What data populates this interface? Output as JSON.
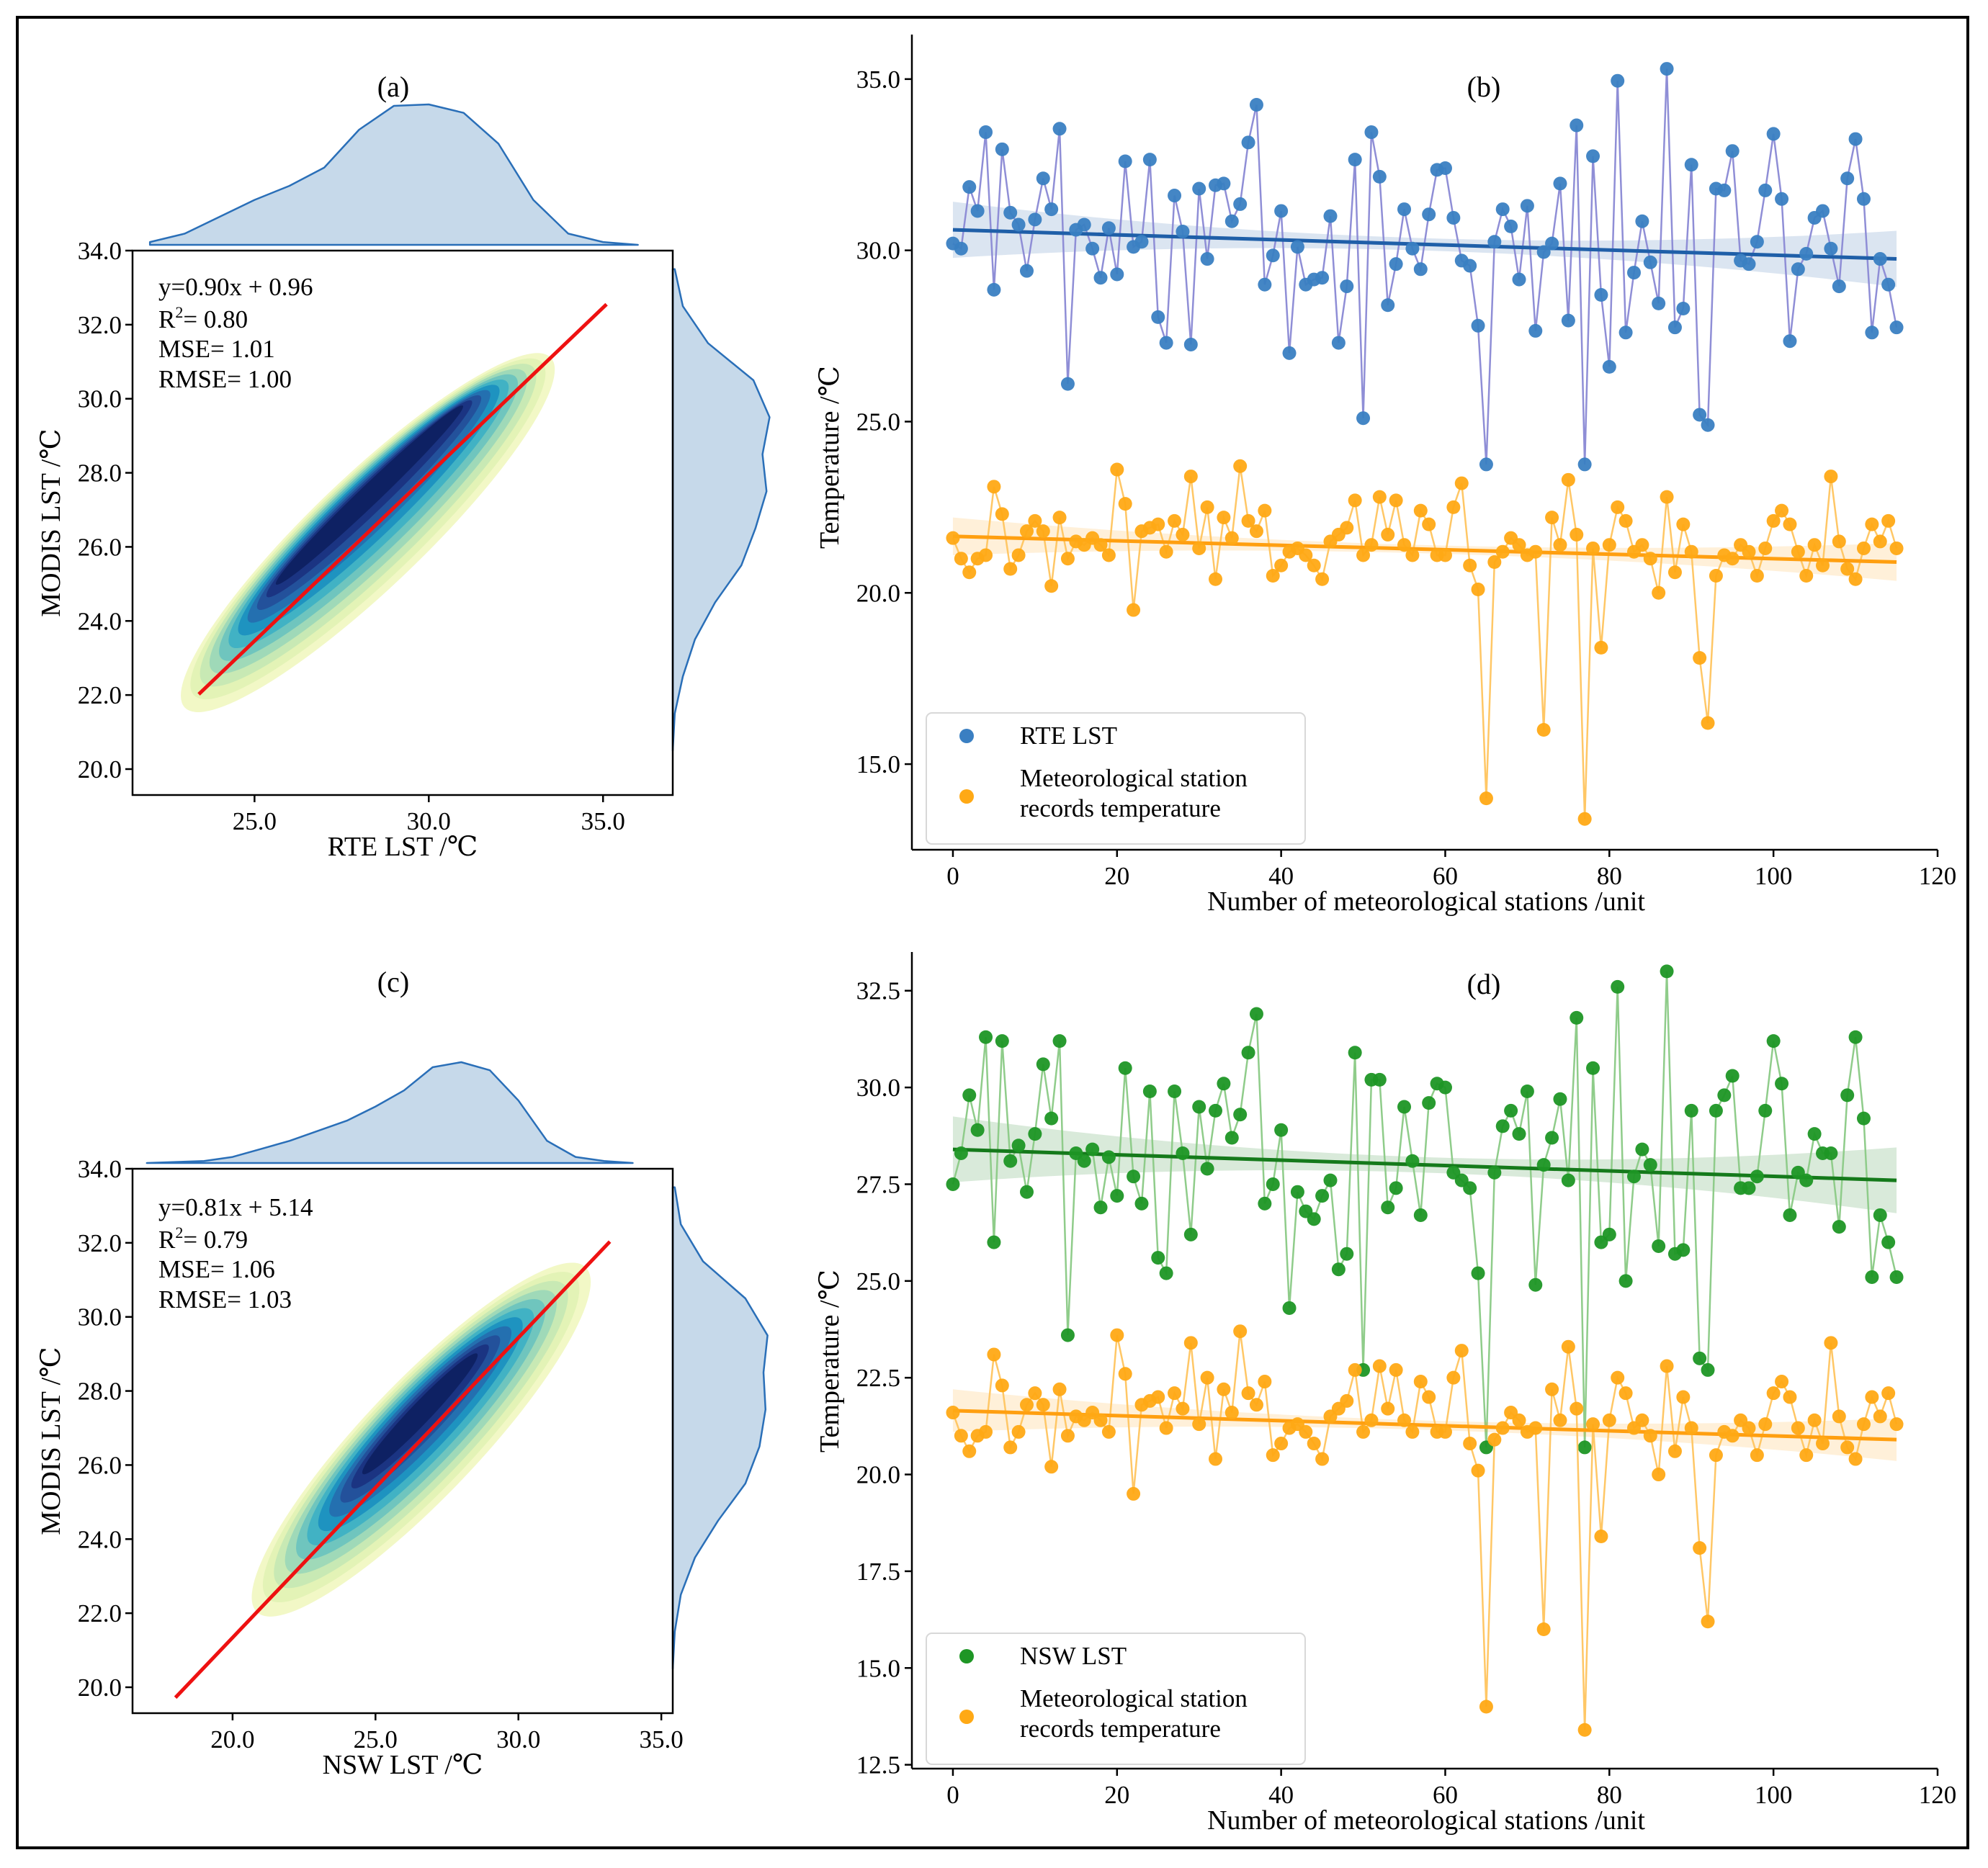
{
  "figure_title": "",
  "panels": {
    "a": {
      "label": "(a)",
      "xlabel": "RTE LST /℃",
      "ylabel": "MODIS LST /℃",
      "xticks": [
        "25.0",
        "30.0",
        "35.0"
      ],
      "yticks": [
        "20.0",
        "22.0",
        "24.0",
        "26.0",
        "28.0",
        "30.0",
        "32.0",
        "34.0"
      ],
      "stats": {
        "eq": "y=0.90x + 0.96",
        "r2_prefix": "R",
        "r2_sup": "2",
        "r2_suffix": "= 0.80",
        "mse": "MSE= 1.01",
        "rmse": "RMSE= 1.00"
      }
    },
    "b": {
      "label": "(b)",
      "xlabel": "Number of meteorological stations /unit",
      "ylabel": "Temperature /℃",
      "xticks": [
        "0",
        "20",
        "40",
        "60",
        "80",
        "100",
        "120"
      ],
      "yticks": [
        "15.0",
        "20.0",
        "25.0",
        "30.0",
        "35.0"
      ],
      "legend": {
        "series1": "RTE LST",
        "series2_line1": "Meteorological station",
        "series2_line2": "records temperature"
      }
    },
    "c": {
      "label": "(c)",
      "xlabel": "NSW LST  /℃",
      "ylabel": "MODIS LST /℃",
      "xticks": [
        "20.0",
        "25.0",
        "30.0",
        "35.0"
      ],
      "yticks": [
        "20.0",
        "22.0",
        "24.0",
        "26.0",
        "28.0",
        "30.0",
        "32.0",
        "34.0"
      ],
      "stats": {
        "eq": "y=0.81x + 5.14",
        "r2_prefix": "R",
        "r2_sup": "2",
        "r2_suffix": "= 0.79",
        "mse": "MSE= 1.06",
        "rmse": "RMSE= 1.03"
      }
    },
    "d": {
      "label": "(d)",
      "xlabel": "Number of meteorological stations /unit",
      "ylabel": "Temperature /℃",
      "xticks": [
        "0",
        "20",
        "40",
        "60",
        "80",
        "100",
        "120"
      ],
      "yticks": [
        "12.5",
        "15.0",
        "17.5",
        "20.0",
        "22.5",
        "25.0",
        "27.5",
        "30.0",
        "32.5"
      ],
      "legend": {
        "series1": "NSW LST",
        "series2_line1": "Meteorological station",
        "series2_line2": "records temperature"
      }
    }
  },
  "colors": {
    "rte": "#3a7fc2",
    "rte_line": "#8f8ed6",
    "rte_fit": "#1f5fa8",
    "met": "#ffa915",
    "met_line": "#ffc766",
    "met_fit": "#ff9f10",
    "nsw": "#1e9625",
    "nsw_line": "#8fcc8a",
    "nsw_fit": "#157a1b",
    "fit_red": "#ee1111",
    "kde_fill": "#c6d9ea",
    "kde_edge": "#2a6fb8"
  },
  "chart_data": [
    {
      "type": "density_scatter",
      "panel": "a",
      "title": "(a)",
      "xlabel": "RTE LST /℃",
      "ylabel": "MODIS LST /℃",
      "xlim": [
        21.5,
        37.0
      ],
      "ylim": [
        19.3,
        34.0
      ],
      "fit": {
        "slope": 0.9,
        "intercept": 0.96,
        "x_range": [
          23.4,
          35.1
        ]
      },
      "density_axis": [
        25.0,
        31.5
      ],
      "density_spread": [
        0.75,
        0.22
      ],
      "density_extent": [
        23.0,
        33.5
      ],
      "marginal_x": [
        [
          22.0,
          0.02
        ],
        [
          23.0,
          0.08
        ],
        [
          24.0,
          0.2
        ],
        [
          25.0,
          0.32
        ],
        [
          26.0,
          0.42
        ],
        [
          27.0,
          0.55
        ],
        [
          28.0,
          0.82
        ],
        [
          29.0,
          0.99
        ],
        [
          30.0,
          1.0
        ],
        [
          31.0,
          0.94
        ],
        [
          32.0,
          0.72
        ],
        [
          33.0,
          0.32
        ],
        [
          34.0,
          0.08
        ],
        [
          35.0,
          0.02
        ],
        [
          36.0,
          0.0
        ]
      ],
      "marginal_y": [
        [
          20.5,
          0.0
        ],
        [
          21.5,
          0.02
        ],
        [
          22.5,
          0.1
        ],
        [
          23.5,
          0.22
        ],
        [
          24.5,
          0.42
        ],
        [
          25.5,
          0.68
        ],
        [
          26.5,
          0.82
        ],
        [
          27.5,
          0.93
        ],
        [
          28.5,
          0.89
        ],
        [
          29.5,
          0.96
        ],
        [
          30.5,
          0.8
        ],
        [
          31.5,
          0.35
        ],
        [
          32.5,
          0.1
        ],
        [
          33.5,
          0.02
        ]
      ]
    },
    {
      "type": "line",
      "panel": "b",
      "title": "(b)",
      "xlabel": "Number of meteorological stations /unit",
      "ylabel": "Temperature /℃",
      "xlim": [
        -5,
        120
      ],
      "ylim": [
        12.5,
        36.3
      ],
      "series": [
        {
          "name": "RTE LST",
          "trend": {
            "start": 30.6,
            "end": 29.75,
            "band": [
              0.18,
              0.82
            ]
          },
          "values": [
            30.2,
            30.05,
            31.85,
            31.15,
            33.45,
            28.85,
            32.95,
            31.1,
            30.75,
            29.4,
            30.9,
            32.1,
            31.2,
            33.55,
            26.1,
            30.6,
            30.75,
            30.05,
            29.2,
            30.65,
            29.3,
            32.6,
            30.1,
            30.25,
            32.65,
            28.05,
            27.3,
            31.6,
            30.55,
            27.25,
            31.8,
            29.75,
            31.9,
            31.95,
            30.85,
            31.35,
            33.15,
            34.25,
            29.0,
            29.85,
            31.15,
            27.0,
            30.1,
            29.0,
            29.15,
            29.2,
            31.0,
            27.3,
            28.95,
            32.65,
            25.1,
            33.45,
            32.15,
            28.4,
            29.6,
            31.2,
            30.05,
            29.45,
            31.05,
            32.35,
            32.4,
            30.95,
            29.7,
            29.55,
            27.8,
            23.75,
            30.25,
            31.2,
            30.7,
            29.15,
            31.3,
            27.65,
            29.95,
            30.2,
            31.95,
            27.95,
            33.65,
            23.75,
            32.75,
            28.7,
            26.6,
            34.95,
            27.6,
            29.35,
            30.85,
            29.65,
            28.45,
            35.3,
            27.75,
            28.3,
            32.5,
            25.2,
            24.9,
            31.8,
            31.75,
            32.9,
            29.7,
            29.6,
            30.25,
            31.75,
            33.4,
            31.5,
            27.35,
            29.45,
            29.9,
            30.95,
            31.15,
            30.05,
            28.95,
            32.1,
            33.25,
            31.5,
            27.6,
            29.75,
            29.0,
            27.75
          ]
        },
        {
          "name": "Meteorological station records temperature",
          "trend": {
            "start": 21.65,
            "end": 20.9,
            "band": [
              0.12,
              0.55
            ]
          },
          "values": [
            21.6,
            21.0,
            20.6,
            21.0,
            21.1,
            23.1,
            22.3,
            20.7,
            21.1,
            21.8,
            22.1,
            21.8,
            20.2,
            22.2,
            21.0,
            21.5,
            21.4,
            21.6,
            21.4,
            21.1,
            23.6,
            22.6,
            19.5,
            21.8,
            21.9,
            22.0,
            21.2,
            22.1,
            21.7,
            23.4,
            21.3,
            22.5,
            20.4,
            22.2,
            21.6,
            23.7,
            22.1,
            21.8,
            22.4,
            20.5,
            20.8,
            21.2,
            21.3,
            21.1,
            20.8,
            20.4,
            21.5,
            21.7,
            21.9,
            22.7,
            21.1,
            21.4,
            22.8,
            21.7,
            22.7,
            21.4,
            21.1,
            22.4,
            22.0,
            21.1,
            21.1,
            22.5,
            23.2,
            20.8,
            20.1,
            14.0,
            20.9,
            21.2,
            21.6,
            21.4,
            21.1,
            21.2,
            16.0,
            22.2,
            21.4,
            23.3,
            21.7,
            13.4,
            21.3,
            18.4,
            21.4,
            22.5,
            22.1,
            21.2,
            21.4,
            21.0,
            20.0,
            22.8,
            20.6,
            22.0,
            21.2,
            18.1,
            16.2,
            20.5,
            21.1,
            21.0,
            21.4,
            21.2,
            20.5,
            21.3,
            22.1,
            22.4,
            22.0,
            21.2,
            20.5,
            21.4,
            20.8,
            23.4,
            21.5,
            20.7,
            20.4,
            21.3,
            22.0,
            21.5,
            22.1,
            21.3
          ]
        }
      ]
    },
    {
      "type": "density_scatter",
      "panel": "c",
      "title": "(c)",
      "xlabel": "NSW LST  /℃",
      "ylabel": "MODIS LST /℃",
      "xlim": [
        16.5,
        35.4
      ],
      "ylim": [
        19.3,
        34.0
      ],
      "fit": {
        "slope": 0.81,
        "intercept": 5.14,
        "x_range": [
          18.0,
          33.2
        ]
      },
      "density_axis": [
        24.0,
        29.2
      ],
      "density_spread": [
        0.7,
        0.24
      ],
      "density_extent": [
        20.3,
        31.8
      ],
      "marginal_x": [
        [
          17.0,
          0.0
        ],
        [
          18.0,
          0.01
        ],
        [
          19.0,
          0.02
        ],
        [
          20.0,
          0.06
        ],
        [
          21.0,
          0.14
        ],
        [
          22.0,
          0.22
        ],
        [
          23.0,
          0.32
        ],
        [
          24.0,
          0.42
        ],
        [
          25.0,
          0.56
        ],
        [
          26.0,
          0.72
        ],
        [
          27.0,
          0.95
        ],
        [
          28.0,
          1.0
        ],
        [
          29.0,
          0.92
        ],
        [
          30.0,
          0.62
        ],
        [
          31.0,
          0.22
        ],
        [
          32.0,
          0.06
        ],
        [
          33.0,
          0.02
        ],
        [
          34.0,
          0.0
        ]
      ],
      "marginal_y": [
        [
          20.5,
          0.0
        ],
        [
          21.5,
          0.02
        ],
        [
          22.5,
          0.08
        ],
        [
          23.5,
          0.22
        ],
        [
          24.5,
          0.45
        ],
        [
          25.5,
          0.72
        ],
        [
          26.5,
          0.86
        ],
        [
          27.5,
          0.92
        ],
        [
          28.5,
          0.9
        ],
        [
          29.5,
          0.94
        ],
        [
          30.5,
          0.72
        ],
        [
          31.5,
          0.3
        ],
        [
          32.5,
          0.08
        ],
        [
          33.5,
          0.02
        ]
      ]
    },
    {
      "type": "line",
      "panel": "d",
      "title": "(d)",
      "xlabel": "Number of meteorological stations /unit",
      "ylabel": "Temperature /℃",
      "xlim": [
        -5,
        120
      ],
      "ylim": [
        12.4,
        33.5
      ],
      "series": [
        {
          "name": "NSW LST",
          "trend": {
            "start": 28.4,
            "end": 27.6,
            "band": [
              0.2,
              0.85
            ]
          },
          "values": [
            27.5,
            28.3,
            29.8,
            28.9,
            31.3,
            26.0,
            31.2,
            28.1,
            28.5,
            27.3,
            28.8,
            30.6,
            29.2,
            31.2,
            23.6,
            28.3,
            28.1,
            28.4,
            26.9,
            28.2,
            27.2,
            30.5,
            27.7,
            27.0,
            29.9,
            25.6,
            25.2,
            29.9,
            28.3,
            26.2,
            29.5,
            27.9,
            29.4,
            30.1,
            28.7,
            29.3,
            30.9,
            31.9,
            27.0,
            27.5,
            28.9,
            24.3,
            27.3,
            26.8,
            26.6,
            27.2,
            27.6,
            25.3,
            25.7,
            30.9,
            22.7,
            30.2,
            30.2,
            26.9,
            27.4,
            29.5,
            28.1,
            26.7,
            29.6,
            30.1,
            30.0,
            27.8,
            27.6,
            27.4,
            25.2,
            20.7,
            27.8,
            29.0,
            29.4,
            28.8,
            29.9,
            24.9,
            28.0,
            28.7,
            29.7,
            27.6,
            31.8,
            20.7,
            30.5,
            26.0,
            26.2,
            32.6,
            25.0,
            27.7,
            28.4,
            28.0,
            25.9,
            33.0,
            25.7,
            25.8,
            29.4,
            23.0,
            22.7,
            29.4,
            29.8,
            30.3,
            27.4,
            27.4,
            27.7,
            29.4,
            31.2,
            30.1,
            26.7,
            27.8,
            27.6,
            28.8,
            28.3,
            28.3,
            26.4,
            29.8,
            31.3,
            29.2,
            25.1,
            26.7,
            26.0,
            25.1
          ]
        },
        {
          "name": "Meteorological station records temperature",
          "trend": {
            "start": 21.65,
            "end": 20.9,
            "band": [
              0.12,
              0.55
            ]
          },
          "values": [
            21.6,
            21.0,
            20.6,
            21.0,
            21.1,
            23.1,
            22.3,
            20.7,
            21.1,
            21.8,
            22.1,
            21.8,
            20.2,
            22.2,
            21.0,
            21.5,
            21.4,
            21.6,
            21.4,
            21.1,
            23.6,
            22.6,
            19.5,
            21.8,
            21.9,
            22.0,
            21.2,
            22.1,
            21.7,
            23.4,
            21.3,
            22.5,
            20.4,
            22.2,
            21.6,
            23.7,
            22.1,
            21.8,
            22.4,
            20.5,
            20.8,
            21.2,
            21.3,
            21.1,
            20.8,
            20.4,
            21.5,
            21.7,
            21.9,
            22.7,
            21.1,
            21.4,
            22.8,
            21.7,
            22.7,
            21.4,
            21.1,
            22.4,
            22.0,
            21.1,
            21.1,
            22.5,
            23.2,
            20.8,
            20.1,
            14.0,
            20.9,
            21.2,
            21.6,
            21.4,
            21.1,
            21.2,
            16.0,
            22.2,
            21.4,
            23.3,
            21.7,
            13.4,
            21.3,
            18.4,
            21.4,
            22.5,
            22.1,
            21.2,
            21.4,
            21.0,
            20.0,
            22.8,
            20.6,
            22.0,
            21.2,
            18.1,
            16.2,
            20.5,
            21.1,
            21.0,
            21.4,
            21.2,
            20.5,
            21.3,
            22.1,
            22.4,
            22.0,
            21.2,
            20.5,
            21.4,
            20.8,
            23.4,
            21.5,
            20.7,
            20.4,
            21.3,
            22.0,
            21.5,
            22.1,
            21.3
          ]
        }
      ]
    }
  ]
}
